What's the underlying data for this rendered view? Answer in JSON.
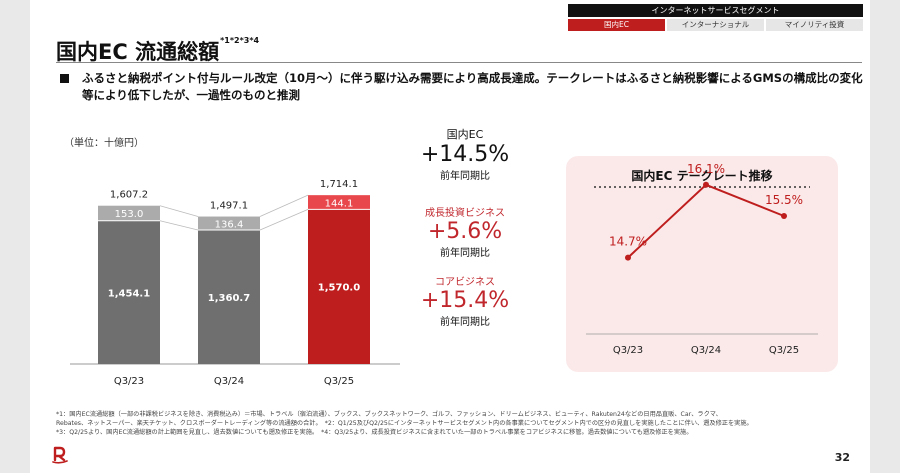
{
  "segment": {
    "header": "インターネットサービスセグメント",
    "tabs": [
      {
        "label": "国内EC",
        "active": true
      },
      {
        "label": "インターナショナル",
        "active": false
      },
      {
        "label": "マイノリティ投資",
        "active": false
      }
    ]
  },
  "title": "国内EC 流通総額",
  "title_sup": "*1*2*3*4",
  "bullet": "ふるさと納税ポイント付与ルール改定（10月～）に伴う駆け込み需要により高成長達成。テークレートはふるさと納税影響によるGMSの構成比の変化等により低下したが、一過性のものと推測",
  "unit_label": "（単位：十億円）",
  "yoy": {
    "head": "国内EC",
    "value": "+14.5%",
    "sub": "前年同期比",
    "growth_head": "成長投資ビジネス",
    "growth_value": "+5.6%",
    "growth_sub": "前年同期比",
    "core_head": "コアビジネス",
    "core_value": "+15.4%",
    "core_sub": "前年同期比"
  },
  "line_panel_title": "国内EC テークレート推移",
  "footnotes": [
    "*1：国内EC流通総額（一部の非課税ビジネスを除き、消費税込み）＝市場、トラベル（宿泊流通）、ブックス、ブックスネットワーク、ゴルフ、ファッション、ドリームビジネス、ビューティ、Rakuten24などの日用品直販、Car、ラクマ、",
    "Rebates、ネットスーパー、楽天チケット、クロスボーダートレーディング等の流通額の合計。　*2：Q1/25及びQ2/25にインターネットサービスセグメント内の各事業についてセグメント内での区分の見直しを実施したことに伴い、遡及修正を実施。",
    "*3：Q2/25より、国内EC流通総額の計上範囲を見直し、過去数値についても遡及修正を実施。　*4：Q3/25より、成長投資ビジネスに含まれていた一部のトラベル事業をコアビジネスに移管。過去数値についても遡及修正を実施。"
  ],
  "page_number": "32",
  "colors": {
    "brand_red": "#bf1e1e",
    "core_grey": "#6f6f6f",
    "growth_grey": "#ababab",
    "growth_red": "#e8474b",
    "panel_bg": "#fbe9e9"
  },
  "chart_data": [
    {
      "type": "bar",
      "stacked": true,
      "categories": [
        "Q3/23",
        "Q3/24",
        "Q3/25"
      ],
      "totals": [
        "1,607.2",
        "1,497.1",
        "1,714.1"
      ],
      "total_values": [
        1607.2,
        1497.1,
        1714.1
      ],
      "series": [
        {
          "values": [
            1454.1,
            1360.7,
            1570.0
          ],
          "labels": [
            "1,454.1",
            "1,360.7",
            "1,570.0"
          ]
        },
        {
          "values": [
            153.0,
            136.4,
            144.1
          ],
          "labels": [
            "153.0",
            "136.4",
            "144.1"
          ]
        }
      ]
    },
    {
      "type": "line",
      "title": "国内EC テークレート推移",
      "categories": [
        "Q3/23",
        "Q3/24",
        "Q3/25"
      ],
      "values": [
        14.7,
        16.1,
        15.5
      ],
      "labels": [
        "14.7%",
        "16.1%",
        "15.5%"
      ]
    }
  ]
}
